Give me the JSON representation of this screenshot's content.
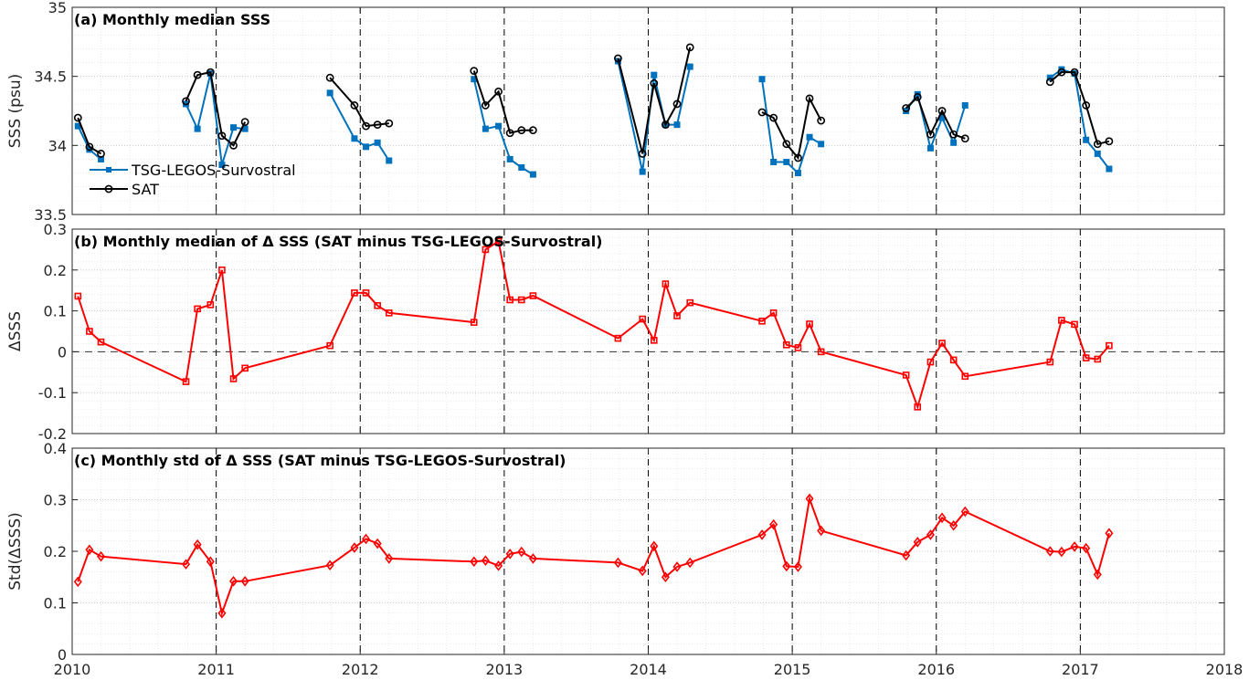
{
  "chart_data": [
    {
      "type": "line",
      "title": "(a) Monthly median SSS",
      "ylabel": "SSS (psu)",
      "xlabel": "",
      "xlim": [
        2010,
        2018
      ],
      "ylim": [
        33.5,
        35
      ],
      "yticks": [
        "33.5",
        "34",
        "34.5",
        "35"
      ],
      "grid": "on (major and minor, dotted)",
      "legend_position": "lower-left",
      "year_separators": [
        2011,
        2012,
        2013,
        2014,
        2015,
        2016,
        2017
      ],
      "series": [
        {
          "name": "TSG-LEGOS-Survostral",
          "color": "#0072BD",
          "marker": "filled-square",
          "segments": [
            [
              [
                2010.04,
                34.14
              ],
              [
                2010.12,
                33.97
              ],
              [
                2010.2,
                33.9
              ]
            ],
            [
              [
                2010.79,
                34.3
              ],
              [
                2010.87,
                34.12
              ],
              [
                2010.96,
                34.52
              ],
              [
                2011.04,
                33.86
              ],
              [
                2011.12,
                34.13
              ],
              [
                2011.2,
                34.12
              ]
            ],
            [
              [
                2011.79,
                34.38
              ],
              [
                2011.96,
                34.05
              ],
              [
                2012.04,
                33.99
              ],
              [
                2012.12,
                34.02
              ],
              [
                2012.2,
                33.89
              ]
            ],
            [
              [
                2012.79,
                34.48
              ],
              [
                2012.87,
                34.12
              ],
              [
                2012.96,
                34.14
              ],
              [
                2013.04,
                33.9
              ],
              [
                2013.12,
                33.84
              ],
              [
                2013.2,
                33.79
              ]
            ],
            [
              [
                2013.79,
                34.61
              ],
              [
                2013.96,
                33.81
              ],
              [
                2014.04,
                34.51
              ],
              [
                2014.12,
                34.15
              ],
              [
                2014.2,
                34.15
              ],
              [
                2014.29,
                34.57
              ]
            ],
            [
              [
                2014.79,
                34.48
              ],
              [
                2014.87,
                33.88
              ],
              [
                2014.96,
                33.88
              ],
              [
                2015.04,
                33.8
              ],
              [
                2015.12,
                34.06
              ],
              [
                2015.2,
                34.01
              ]
            ],
            [
              [
                2015.79,
                34.25
              ],
              [
                2015.87,
                34.37
              ],
              [
                2015.96,
                33.98
              ],
              [
                2016.04,
                34.2
              ],
              [
                2016.12,
                34.02
              ],
              [
                2016.2,
                34.29
              ]
            ],
            [
              [
                2016.79,
                34.49
              ],
              [
                2016.87,
                34.55
              ],
              [
                2016.96,
                34.52
              ],
              [
                2017.04,
                34.04
              ],
              [
                2017.12,
                33.94
              ],
              [
                2017.2,
                33.83
              ]
            ]
          ]
        },
        {
          "name": "SAT",
          "color": "#000000",
          "marker": "open-circle",
          "segments": [
            [
              [
                2010.04,
                34.2
              ],
              [
                2010.12,
                33.99
              ],
              [
                2010.2,
                33.94
              ]
            ],
            [
              [
                2010.79,
                34.32
              ],
              [
                2010.87,
                34.51
              ],
              [
                2010.96,
                34.53
              ],
              [
                2011.04,
                34.07
              ],
              [
                2011.12,
                34.0
              ],
              [
                2011.2,
                34.17
              ]
            ],
            [
              [
                2011.79,
                34.49
              ],
              [
                2011.96,
                34.29
              ],
              [
                2012.04,
                34.14
              ],
              [
                2012.12,
                34.15
              ],
              [
                2012.2,
                34.16
              ]
            ],
            [
              [
                2012.79,
                34.54
              ],
              [
                2012.87,
                34.29
              ],
              [
                2012.96,
                34.39
              ],
              [
                2013.04,
                34.09
              ],
              [
                2013.12,
                34.11
              ],
              [
                2013.2,
                34.11
              ]
            ],
            [
              [
                2013.79,
                34.63
              ],
              [
                2013.96,
                33.94
              ],
              [
                2014.04,
                34.45
              ],
              [
                2014.12,
                34.15
              ],
              [
                2014.2,
                34.3
              ],
              [
                2014.29,
                34.71
              ]
            ],
            [
              [
                2014.79,
                34.24
              ],
              [
                2014.87,
                34.2
              ],
              [
                2014.96,
                34.01
              ],
              [
                2015.04,
                33.91
              ],
              [
                2015.12,
                34.34
              ],
              [
                2015.2,
                34.18
              ]
            ],
            [
              [
                2015.79,
                34.27
              ],
              [
                2015.87,
                34.35
              ],
              [
                2015.96,
                34.08
              ],
              [
                2016.04,
                34.25
              ],
              [
                2016.12,
                34.08
              ],
              [
                2016.2,
                34.05
              ]
            ],
            [
              [
                2016.79,
                34.46
              ],
              [
                2016.87,
                34.53
              ],
              [
                2016.96,
                34.53
              ],
              [
                2017.04,
                34.29
              ],
              [
                2017.12,
                34.01
              ],
              [
                2017.2,
                34.03
              ]
            ]
          ]
        }
      ]
    },
    {
      "type": "line",
      "title": "(b) Monthly median of Δ SSS (SAT minus TSG-LEGOS-Survostral)",
      "ylabel": "ΔSSS",
      "xlabel": "",
      "xlim": [
        2010,
        2018
      ],
      "ylim": [
        -0.2,
        0.3
      ],
      "yticks": [
        "-0.2",
        "-0.1",
        "0",
        "0.1",
        "0.2",
        "0.3"
      ],
      "zero_line": true,
      "grid": "on (major and minor, dotted)",
      "year_separators": [
        2011,
        2012,
        2013,
        2014,
        2015,
        2016,
        2017
      ],
      "series": [
        {
          "color": "#FF0000",
          "marker": "open-square",
          "points": [
            [
              2010.04,
              0.136
            ],
            [
              2010.12,
              0.05
            ],
            [
              2010.2,
              0.024
            ],
            [
              2010.79,
              -0.073
            ],
            [
              2010.87,
              0.105
            ],
            [
              2010.96,
              0.115
            ],
            [
              2011.04,
              0.2
            ],
            [
              2011.12,
              -0.066
            ],
            [
              2011.2,
              -0.04
            ],
            [
              2011.79,
              0.015
            ],
            [
              2011.96,
              0.144
            ],
            [
              2012.04,
              0.144
            ],
            [
              2012.12,
              0.113
            ],
            [
              2012.2,
              0.095
            ],
            [
              2012.79,
              0.072
            ],
            [
              2012.87,
              0.25
            ],
            [
              2012.96,
              0.27
            ],
            [
              2013.04,
              0.127
            ],
            [
              2013.12,
              0.127
            ],
            [
              2013.2,
              0.137
            ],
            [
              2013.79,
              0.033
            ],
            [
              2013.96,
              0.08
            ],
            [
              2014.04,
              0.028
            ],
            [
              2014.12,
              0.166
            ],
            [
              2014.2,
              0.088
            ],
            [
              2014.29,
              0.12
            ],
            [
              2014.79,
              0.075
            ],
            [
              2014.87,
              0.095
            ],
            [
              2014.96,
              0.017
            ],
            [
              2015.04,
              0.01
            ],
            [
              2015.12,
              0.068
            ],
            [
              2015.2,
              0.0
            ],
            [
              2015.79,
              -0.057
            ],
            [
              2015.87,
              -0.135
            ],
            [
              2015.96,
              -0.025
            ],
            [
              2016.04,
              0.021
            ],
            [
              2016.12,
              -0.02
            ],
            [
              2016.2,
              -0.06
            ],
            [
              2016.79,
              -0.025
            ],
            [
              2016.87,
              0.077
            ],
            [
              2016.96,
              0.067
            ],
            [
              2017.04,
              -0.015
            ],
            [
              2017.12,
              -0.018
            ],
            [
              2017.2,
              0.015
            ]
          ]
        }
      ]
    },
    {
      "type": "line",
      "title": "(c) Monthly std of Δ SSS (SAT minus TSG-LEGOS-Survostral)",
      "ylabel": "Std(ΔSSS)",
      "xlabel": "",
      "xlim": [
        2010,
        2018
      ],
      "ylim": [
        0,
        0.4
      ],
      "yticks": [
        "0",
        "0.1",
        "0.2",
        "0.3",
        "0.4"
      ],
      "xticks": [
        "2010",
        "2011",
        "2012",
        "2013",
        "2014",
        "2015",
        "2016",
        "2017",
        "2018"
      ],
      "grid": "on (major and minor, dotted)",
      "year_separators": [
        2011,
        2012,
        2013,
        2014,
        2015,
        2016,
        2017
      ],
      "series": [
        {
          "color": "#FF0000",
          "marker": "open-diamond",
          "points": [
            [
              2010.04,
              0.141
            ],
            [
              2010.12,
              0.203
            ],
            [
              2010.2,
              0.19
            ],
            [
              2010.79,
              0.175
            ],
            [
              2010.87,
              0.213
            ],
            [
              2010.96,
              0.18
            ],
            [
              2011.04,
              0.08
            ],
            [
              2011.12,
              0.142
            ],
            [
              2011.2,
              0.142
            ],
            [
              2011.79,
              0.173
            ],
            [
              2011.96,
              0.207
            ],
            [
              2012.04,
              0.224
            ],
            [
              2012.12,
              0.215
            ],
            [
              2012.2,
              0.186
            ],
            [
              2012.79,
              0.18
            ],
            [
              2012.87,
              0.182
            ],
            [
              2012.96,
              0.172
            ],
            [
              2013.04,
              0.195
            ],
            [
              2013.12,
              0.199
            ],
            [
              2013.2,
              0.186
            ],
            [
              2013.79,
              0.178
            ],
            [
              2013.96,
              0.162
            ],
            [
              2014.04,
              0.21
            ],
            [
              2014.12,
              0.15
            ],
            [
              2014.2,
              0.17
            ],
            [
              2014.29,
              0.178
            ],
            [
              2014.79,
              0.232
            ],
            [
              2014.87,
              0.252
            ],
            [
              2014.96,
              0.171
            ],
            [
              2015.04,
              0.17
            ],
            [
              2015.12,
              0.302
            ],
            [
              2015.2,
              0.24
            ],
            [
              2015.79,
              0.192
            ],
            [
              2015.87,
              0.218
            ],
            [
              2015.96,
              0.232
            ],
            [
              2016.04,
              0.265
            ],
            [
              2016.12,
              0.25
            ],
            [
              2016.2,
              0.277
            ],
            [
              2016.79,
              0.2
            ],
            [
              2016.87,
              0.199
            ],
            [
              2016.96,
              0.209
            ],
            [
              2017.04,
              0.206
            ],
            [
              2017.12,
              0.155
            ],
            [
              2017.2,
              0.235
            ]
          ]
        }
      ]
    }
  ]
}
